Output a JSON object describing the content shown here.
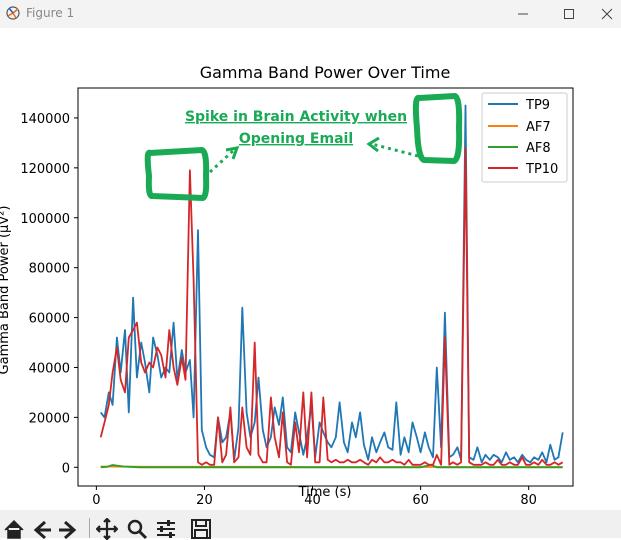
{
  "window": {
    "title": "Figure 1",
    "min_icon": "minimize-icon",
    "max_icon": "maximize-icon",
    "close_icon": "close-icon"
  },
  "toolbar": {
    "icons": [
      "home-icon",
      "back-icon",
      "forward-icon",
      "pan-icon",
      "zoom-icon",
      "configure-subplots-icon",
      "save-icon"
    ]
  },
  "annotation": {
    "line1": "Spike in Brain Activity when",
    "line2": "Opening Email",
    "color": "#1aaa55"
  },
  "chart_data": {
    "type": "line",
    "title": "Gamma Band Power Over Time",
    "xlabel": "Time (s)",
    "ylabel": "Gamma Band Power (µV²)",
    "xlim": [
      -3.4,
      88.2
    ],
    "ylim": [
      -7500,
      152000
    ],
    "xticks": [
      0,
      20,
      40,
      60,
      80
    ],
    "yticks": [
      0,
      20000,
      40000,
      60000,
      80000,
      100000,
      120000,
      140000
    ],
    "xtick_labels": [
      "0",
      "20",
      "40",
      "60",
      "80"
    ],
    "ytick_labels": [
      "0",
      "20000",
      "40000",
      "60000",
      "80000",
      "100000",
      "120000",
      "140000"
    ],
    "legend": {
      "position": "top-right",
      "entries": [
        "TP9",
        "AF7",
        "AF8",
        "TP10"
      ]
    },
    "grid": false,
    "series": [
      {
        "name": "TP9",
        "color": "#1f77b4",
        "x": [
          0.8,
          1.5,
          2.3,
          3.0,
          3.8,
          4.5,
          5.3,
          6.0,
          6.8,
          7.5,
          8.3,
          9.0,
          9.8,
          10.5,
          11.3,
          12.0,
          12.8,
          13.5,
          14.3,
          15.0,
          15.8,
          16.5,
          17.3,
          18.0,
          18.8,
          19.5,
          20.3,
          21.0,
          21.8,
          22.5,
          23.3,
          24.0,
          24.8,
          25.5,
          26.3,
          27.0,
          27.8,
          28.5,
          29.3,
          30.0,
          30.8,
          31.5,
          32.3,
          33.0,
          33.8,
          34.5,
          35.3,
          36.0,
          36.8,
          37.5,
          38.3,
          39.0,
          39.8,
          40.5,
          41.3,
          42.0,
          42.8,
          43.5,
          44.3,
          45.0,
          45.8,
          46.5,
          47.3,
          48.0,
          48.8,
          49.5,
          50.3,
          51.0,
          51.8,
          52.5,
          53.3,
          54.0,
          54.8,
          55.5,
          56.3,
          57.0,
          57.8,
          58.5,
          59.3,
          60.0,
          60.8,
          61.5,
          62.3,
          63.0,
          63.8,
          64.5,
          65.3,
          66.0,
          66.8,
          67.5,
          68.3,
          69.0,
          69.8,
          70.5,
          71.3,
          72.0,
          72.8,
          73.5,
          74.3,
          75.0,
          75.8,
          76.5,
          77.3,
          78.0,
          78.8,
          79.5,
          80.3,
          81.0,
          81.8,
          82.5,
          83.3,
          84.0,
          84.8,
          85.5,
          86.3
        ],
        "y": [
          22000,
          20000,
          30000,
          25000,
          52000,
          38000,
          55000,
          22000,
          68000,
          36000,
          50000,
          42000,
          30000,
          52000,
          45000,
          36000,
          40000,
          38000,
          58000,
          35000,
          47000,
          38000,
          43000,
          20000,
          95000,
          15000,
          8000,
          5000,
          4000,
          20000,
          10000,
          12000,
          22000,
          3000,
          16000,
          64000,
          22000,
          12000,
          18000,
          36000,
          15000,
          8000,
          12000,
          24000,
          17000,
          28000,
          8000,
          6000,
          22000,
          14000,
          5000,
          12000,
          25000,
          4000,
          18000,
          14000,
          10000,
          8000,
          12000,
          26000,
          10000,
          6000,
          18000,
          12000,
          22000,
          9000,
          3000,
          12000,
          6000,
          10000,
          14000,
          8000,
          7000,
          26000,
          5000,
          12000,
          6000,
          18000,
          12000,
          6000,
          14000,
          8000,
          4000,
          40000,
          8000,
          62000,
          4000,
          5000,
          8000,
          3000,
          145000,
          4000,
          3000,
          8000,
          2000,
          5000,
          3000,
          5000,
          4000,
          2000,
          6000,
          3000,
          4000,
          2000,
          5000,
          3000,
          2000,
          4000,
          3000,
          6000,
          2000,
          9000,
          3000,
          4000,
          14000
        ]
      },
      {
        "name": "AF7",
        "color": "#ff7f0e",
        "x": [
          0.8,
          10,
          20,
          30,
          40,
          50,
          60,
          70,
          80,
          86.3
        ],
        "y": [
          300,
          200,
          200,
          200,
          100,
          100,
          100,
          100,
          100,
          100
        ]
      },
      {
        "name": "AF8",
        "color": "#2ca02c",
        "x": [
          0.8,
          2,
          3,
          5,
          8,
          10,
          15,
          20,
          30,
          40,
          50,
          60,
          62,
          63,
          70,
          80,
          86.3
        ],
        "y": [
          0,
          200,
          900,
          300,
          0,
          0,
          0,
          0,
          0,
          0,
          0,
          0,
          1000,
          0,
          0,
          0,
          0
        ]
      },
      {
        "name": "TP10",
        "color": "#d62728",
        "x": [
          0.8,
          1.5,
          2.3,
          3.0,
          3.8,
          4.5,
          5.3,
          6.0,
          6.8,
          7.5,
          8.3,
          9.0,
          9.8,
          10.5,
          11.3,
          12.0,
          12.8,
          13.5,
          14.3,
          15.0,
          15.8,
          16.5,
          17.3,
          18.0,
          18.8,
          19.5,
          20.3,
          21.0,
          21.8,
          22.5,
          23.3,
          24.0,
          24.8,
          25.5,
          26.3,
          27.0,
          27.8,
          28.5,
          29.3,
          30.0,
          30.8,
          31.5,
          32.3,
          33.0,
          33.8,
          34.5,
          35.3,
          36.0,
          36.8,
          37.5,
          38.3,
          39.0,
          39.8,
          40.5,
          41.3,
          42.0,
          42.8,
          43.5,
          44.3,
          45.0,
          45.8,
          46.5,
          47.3,
          48.0,
          48.8,
          49.5,
          50.3,
          51.0,
          51.8,
          52.5,
          53.3,
          54.0,
          54.8,
          55.5,
          56.3,
          57.0,
          57.8,
          58.5,
          59.3,
          60.0,
          60.8,
          61.5,
          62.3,
          63.0,
          63.8,
          64.5,
          65.3,
          66.0,
          66.8,
          67.5,
          68.3,
          69.0,
          69.8,
          70.5,
          71.3,
          72.0,
          72.8,
          73.5,
          74.3,
          75.0,
          75.8,
          76.5,
          77.3,
          78.0,
          78.8,
          79.5,
          80.3,
          81.0,
          81.8,
          82.5,
          83.3,
          84.0,
          84.8,
          85.5,
          86.3
        ],
        "y": [
          12000,
          18000,
          25000,
          38000,
          48000,
          35000,
          30000,
          52000,
          55000,
          58000,
          42000,
          38000,
          42000,
          40000,
          48000,
          45000,
          36000,
          55000,
          40000,
          33000,
          44000,
          35000,
          119000,
          75000,
          2000,
          1000,
          2000,
          1000,
          1000,
          20000,
          2000,
          5000,
          24000,
          2000,
          4000,
          24000,
          8000,
          5000,
          50000,
          5000,
          2000,
          2000,
          28000,
          12000,
          4000,
          22000,
          2000,
          1000,
          18000,
          6000,
          30000,
          4000,
          30000,
          2000,
          2000,
          28000,
          3000,
          2000,
          3000,
          2000,
          2000,
          3000,
          2000,
          2000,
          3000,
          2000,
          1000,
          3000,
          2000,
          4000,
          2000,
          2000,
          3000,
          2000,
          2000,
          1000,
          3000,
          1000,
          1000,
          1000,
          2000,
          1000,
          1000,
          5000,
          1000,
          52000,
          1000,
          2000,
          1000,
          2000,
          128000,
          2000,
          1000,
          1000,
          1000,
          2000,
          1000,
          1000,
          3000,
          1000,
          1000,
          2000,
          1000,
          1000,
          4000,
          1000,
          1000,
          2000,
          1000,
          3000,
          1000,
          1000,
          2000,
          1000,
          2000
        ]
      }
    ]
  }
}
